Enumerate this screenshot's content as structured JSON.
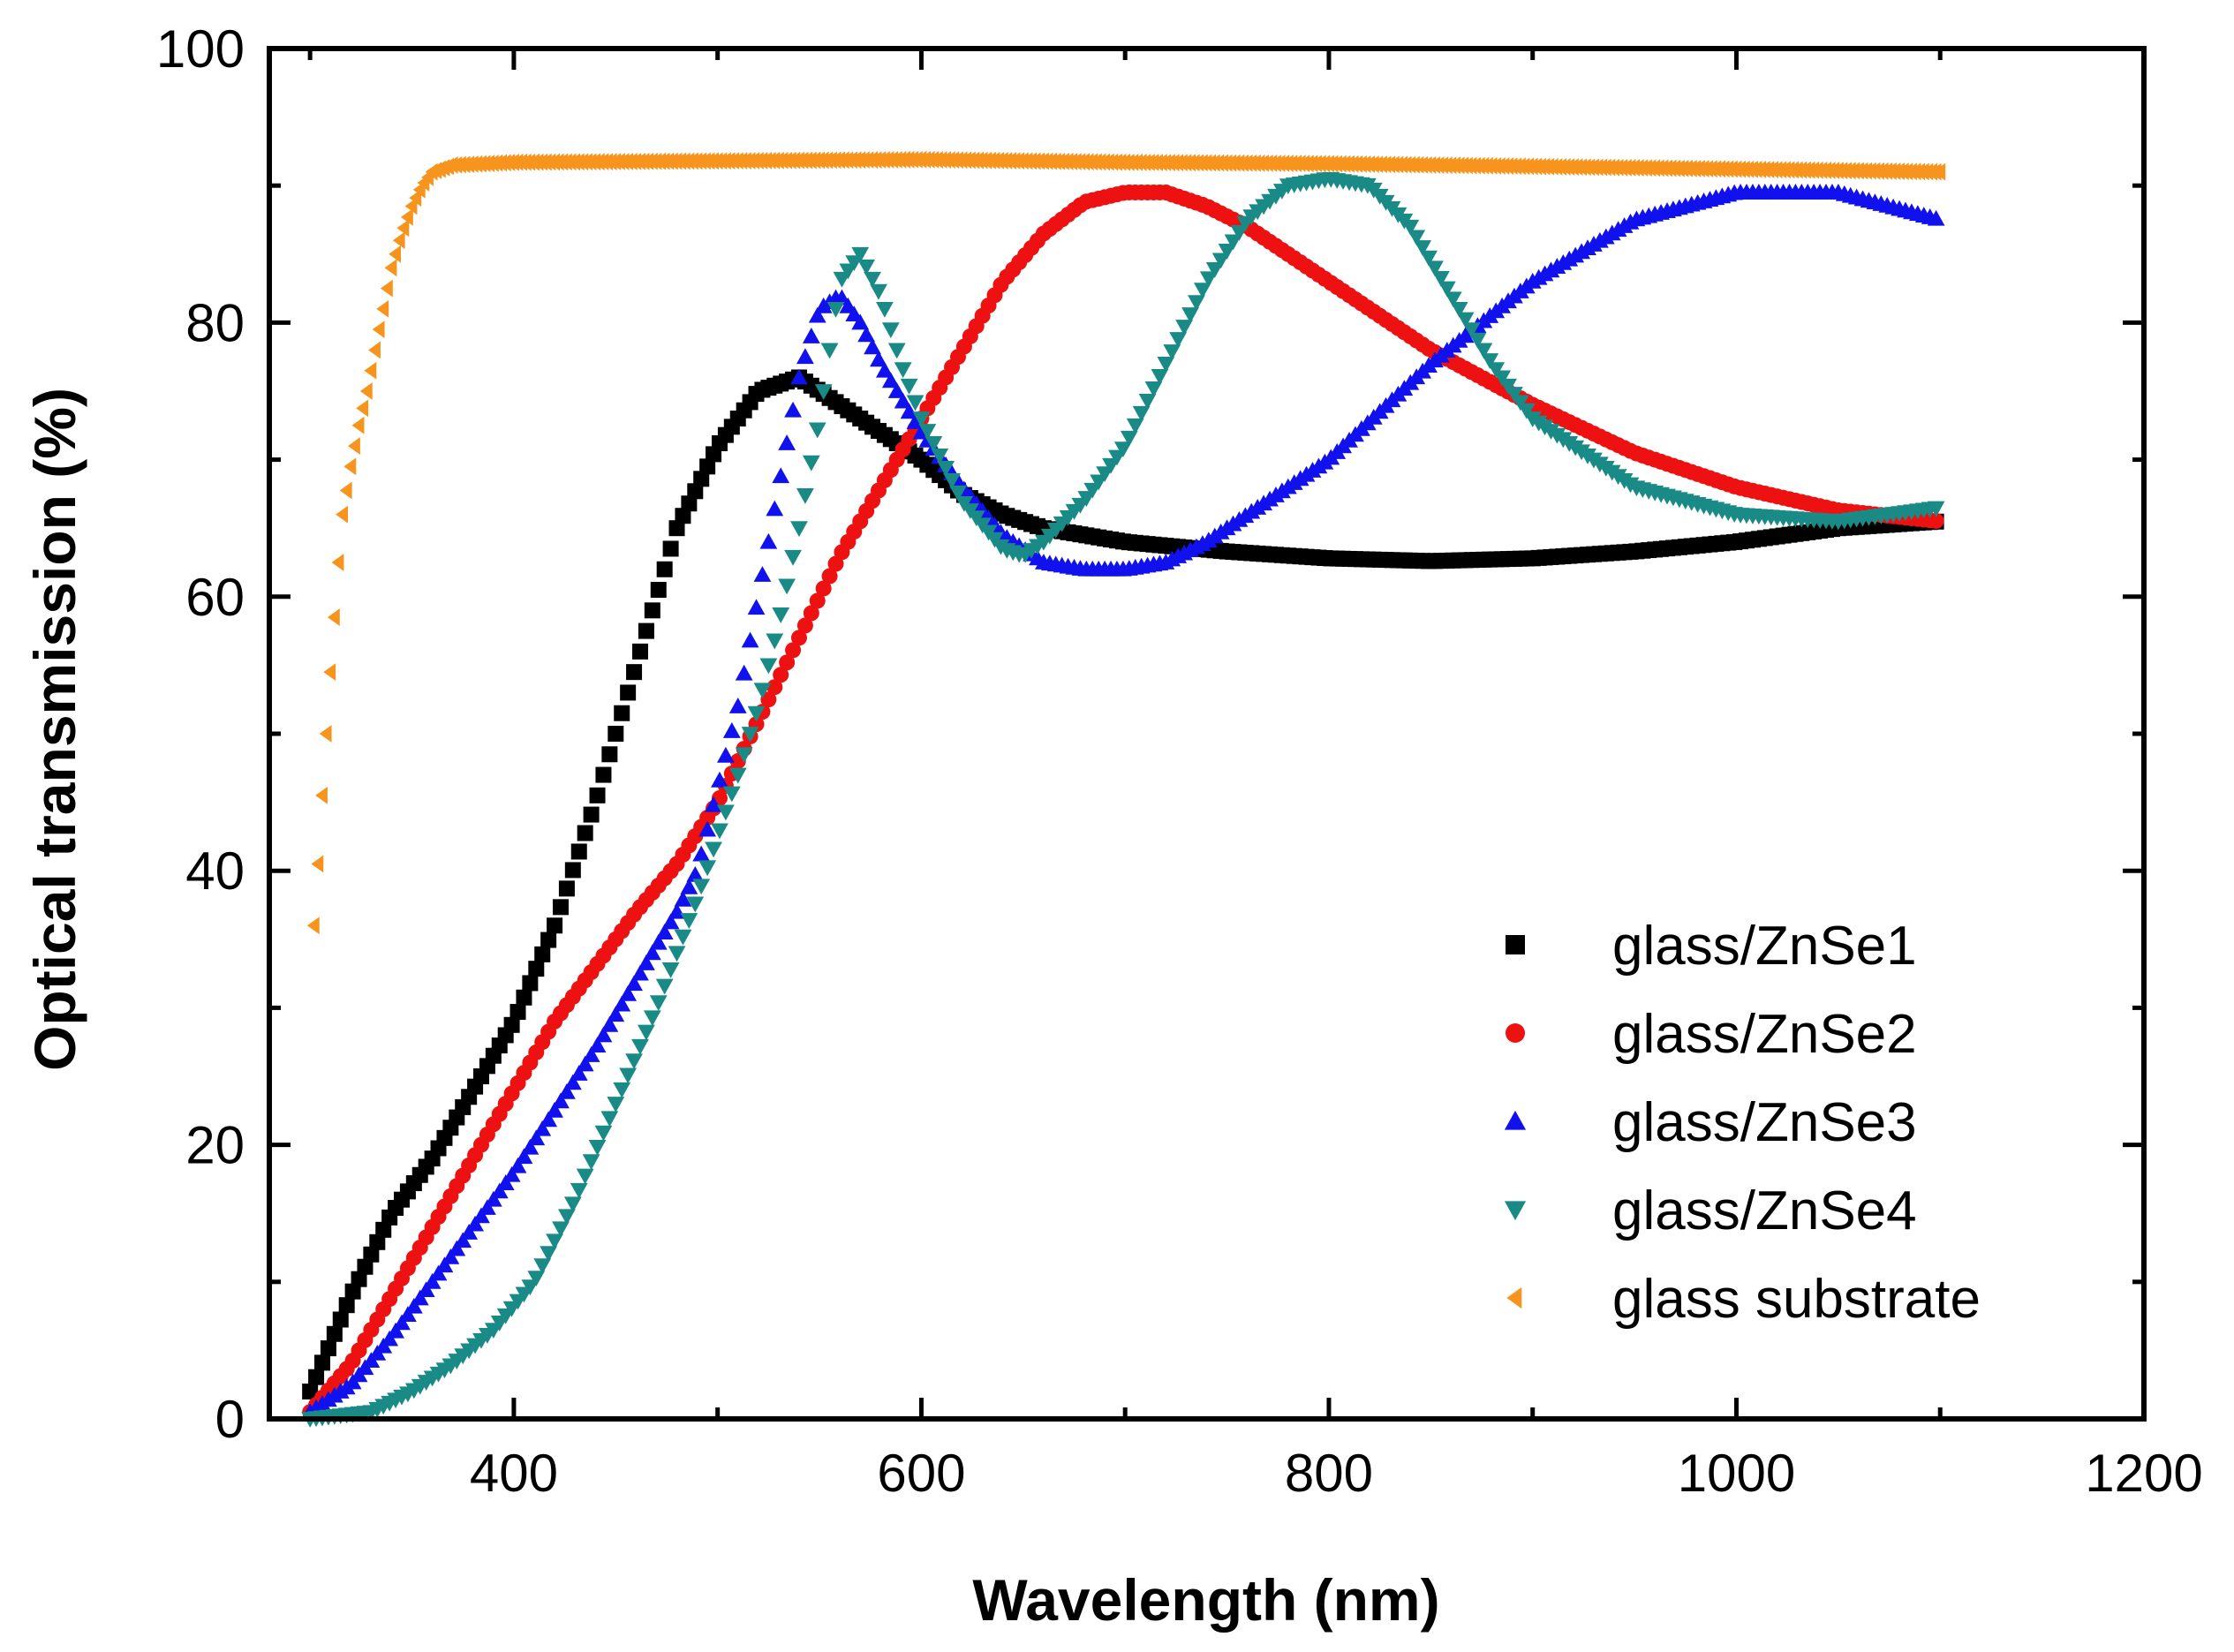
{
  "chart_data": {
    "type": "scatter",
    "title": "",
    "xlabel": "Wavelength (nm)",
    "ylabel": "Optical transmission (%)",
    "xlim": [
      280,
      1200
    ],
    "ylim": [
      0,
      100
    ],
    "x_ticks": [
      400,
      600,
      800,
      1000,
      1200
    ],
    "y_ticks": [
      0,
      20,
      40,
      60,
      80,
      100
    ],
    "legend_position": "bottom-right",
    "series": [
      {
        "name": "glass/ZnSe1",
        "marker": "square",
        "color": "#000000",
        "points": [
          [
            300,
            2
          ],
          [
            320,
            9
          ],
          [
            340,
            15
          ],
          [
            360,
            19
          ],
          [
            380,
            24
          ],
          [
            400,
            29
          ],
          [
            420,
            36
          ],
          [
            440,
            45
          ],
          [
            460,
            55
          ],
          [
            480,
            65
          ],
          [
            500,
            71
          ],
          [
            520,
            75
          ],
          [
            540,
            76
          ],
          [
            560,
            74
          ],
          [
            580,
            72
          ],
          [
            600,
            70
          ],
          [
            620,
            67.5
          ],
          [
            640,
            66
          ],
          [
            660,
            65
          ],
          [
            680,
            64.5
          ],
          [
            700,
            64
          ],
          [
            750,
            63.3
          ],
          [
            800,
            62.8
          ],
          [
            850,
            62.6
          ],
          [
            900,
            62.8
          ],
          [
            950,
            63.3
          ],
          [
            1000,
            64
          ],
          [
            1050,
            65
          ],
          [
            1100,
            65.5
          ]
        ]
      },
      {
        "name": "glass/ZnSe2",
        "marker": "circle",
        "color": "#ee1111",
        "points": [
          [
            300,
            0.5
          ],
          [
            320,
            4
          ],
          [
            340,
            9
          ],
          [
            360,
            14
          ],
          [
            380,
            19
          ],
          [
            400,
            24
          ],
          [
            420,
            29
          ],
          [
            440,
            33
          ],
          [
            460,
            37
          ],
          [
            480,
            40.5
          ],
          [
            500,
            45
          ],
          [
            520,
            51
          ],
          [
            540,
            57
          ],
          [
            560,
            63
          ],
          [
            580,
            68
          ],
          [
            600,
            73
          ],
          [
            620,
            78
          ],
          [
            640,
            83
          ],
          [
            660,
            86.5
          ],
          [
            680,
            88.8
          ],
          [
            700,
            89.5
          ],
          [
            720,
            89.5
          ],
          [
            740,
            88.5
          ],
          [
            760,
            87
          ],
          [
            780,
            85
          ],
          [
            800,
            83
          ],
          [
            850,
            78
          ],
          [
            900,
            74
          ],
          [
            950,
            70.5
          ],
          [
            1000,
            68
          ],
          [
            1050,
            66.3
          ],
          [
            1100,
            65.5
          ]
        ]
      },
      {
        "name": "glass/ZnSe3",
        "marker": "triangle-up",
        "color": "#1111ee",
        "points": [
          [
            300,
            0.5
          ],
          [
            320,
            2.5
          ],
          [
            340,
            6
          ],
          [
            360,
            10
          ],
          [
            380,
            14
          ],
          [
            400,
            18
          ],
          [
            420,
            22.5
          ],
          [
            440,
            27
          ],
          [
            460,
            32
          ],
          [
            480,
            37
          ],
          [
            490,
            40
          ],
          [
            500,
            46
          ],
          [
            510,
            52
          ],
          [
            520,
            60
          ],
          [
            530,
            68
          ],
          [
            540,
            76
          ],
          [
            550,
            81
          ],
          [
            560,
            82
          ],
          [
            570,
            80
          ],
          [
            580,
            77
          ],
          [
            600,
            72
          ],
          [
            620,
            68
          ],
          [
            640,
            64.5
          ],
          [
            660,
            62.5
          ],
          [
            680,
            62
          ],
          [
            700,
            62
          ],
          [
            720,
            62.5
          ],
          [
            740,
            64
          ],
          [
            760,
            66
          ],
          [
            800,
            70
          ],
          [
            850,
            77
          ],
          [
            900,
            83
          ],
          [
            950,
            87.5
          ],
          [
            1000,
            89.5
          ],
          [
            1050,
            89.5
          ],
          [
            1100,
            87.5
          ]
        ]
      },
      {
        "name": "glass/ZnSe4",
        "marker": "triangle-down",
        "color": "#1a8a86",
        "points": [
          [
            300,
            0
          ],
          [
            330,
            0.5
          ],
          [
            350,
            2
          ],
          [
            370,
            4
          ],
          [
            390,
            6.5
          ],
          [
            410,
            10
          ],
          [
            430,
            16
          ],
          [
            450,
            23
          ],
          [
            470,
            30
          ],
          [
            490,
            38
          ],
          [
            510,
            47
          ],
          [
            520,
            52
          ],
          [
            530,
            58
          ],
          [
            540,
            65
          ],
          [
            550,
            73
          ],
          [
            560,
            83
          ],
          [
            570,
            85
          ],
          [
            580,
            82
          ],
          [
            590,
            77
          ],
          [
            600,
            73
          ],
          [
            620,
            67
          ],
          [
            640,
            63.5
          ],
          [
            650,
            63
          ],
          [
            660,
            64
          ],
          [
            680,
            67
          ],
          [
            700,
            71
          ],
          [
            720,
            77
          ],
          [
            740,
            83
          ],
          [
            760,
            87.5
          ],
          [
            780,
            90
          ],
          [
            800,
            90.5
          ],
          [
            820,
            90
          ],
          [
            840,
            87
          ],
          [
            860,
            82
          ],
          [
            880,
            77
          ],
          [
            900,
            73
          ],
          [
            950,
            68
          ],
          [
            1000,
            66
          ],
          [
            1050,
            65.5
          ],
          [
            1100,
            66.5
          ]
        ]
      },
      {
        "name": "glass substrate",
        "marker": "triangle-left",
        "color": "#f7941d",
        "points": [
          [
            302,
            36
          ],
          [
            304,
            40.5
          ],
          [
            306,
            45.5
          ],
          [
            308,
            50
          ],
          [
            310,
            54.5
          ],
          [
            312,
            58.5
          ],
          [
            314,
            62.5
          ],
          [
            316,
            66
          ],
          [
            320,
            69.5
          ],
          [
            324,
            72.5
          ],
          [
            328,
            75
          ],
          [
            332,
            78
          ],
          [
            336,
            81
          ],
          [
            340,
            84
          ],
          [
            345,
            86.5
          ],
          [
            350,
            88.5
          ],
          [
            355,
            90
          ],
          [
            360,
            91
          ],
          [
            370,
            91.5
          ],
          [
            400,
            91.7
          ],
          [
            500,
            91.8
          ],
          [
            600,
            91.9
          ],
          [
            700,
            91.7
          ],
          [
            800,
            91.6
          ],
          [
            900,
            91.4
          ],
          [
            1000,
            91.2
          ],
          [
            1100,
            91
          ]
        ]
      }
    ]
  }
}
